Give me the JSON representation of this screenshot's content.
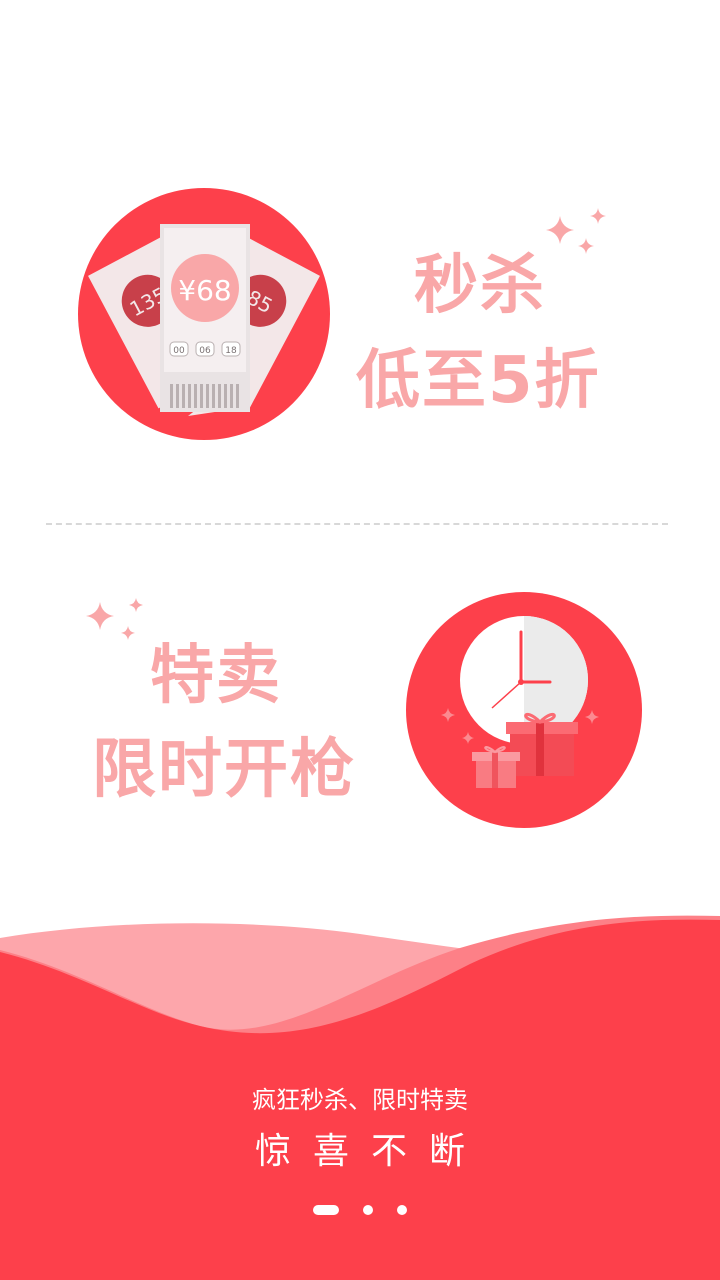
{
  "colors": {
    "accent": "#fd404b",
    "light_accent": "#f9a7a8",
    "wave_light": "#fda6ab",
    "divider": "#d8d8d8"
  },
  "feature_seckill": {
    "title": "秒杀",
    "subtitle": "低至5折",
    "ticket_price": "¥68",
    "ticket_left_price": "135",
    "ticket_right_price": "85",
    "countdown": [
      "00",
      "06",
      "18"
    ],
    "icon": "tickets-icon"
  },
  "feature_sale": {
    "title": "特卖",
    "subtitle": "限时开枪",
    "icon": "clock-gift-icon"
  },
  "footer": {
    "tagline": "疯狂秒杀、限时特卖",
    "slogan": "惊喜不断"
  },
  "pager": {
    "count": 3,
    "active_index": 0
  }
}
